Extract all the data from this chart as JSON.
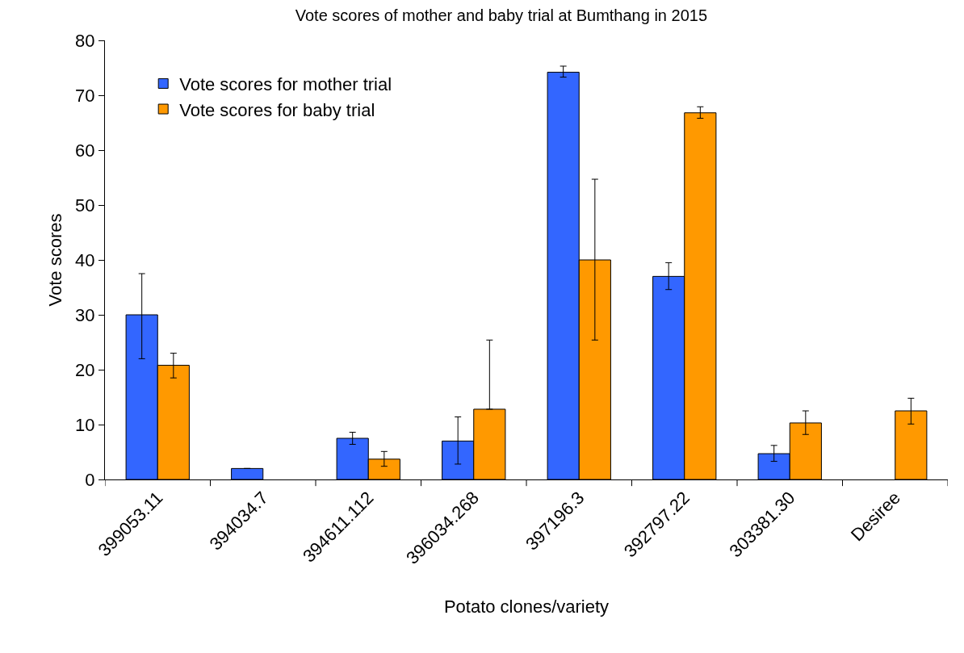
{
  "chart_data": {
    "type": "bar",
    "title": "Vote scores of mother and baby trial at Bumthang in 2015",
    "xlabel": "Potato clones/variety",
    "ylabel": "Vote scores",
    "categories": [
      "399053.11",
      "394034.7",
      "394611.112",
      "396034.268",
      "397196.3",
      "392797.22",
      "303381.30",
      "Desiree"
    ],
    "series": [
      {
        "name": "Vote scores for mother trial",
        "color": "#3366ff",
        "values": [
          30,
          2,
          7.5,
          7,
          74.2,
          37,
          4.7,
          null
        ],
        "errors": [
          [
            22,
            37.5
          ],
          null,
          [
            6.4,
            8.6
          ],
          [
            2.8,
            11.4
          ],
          [
            73.3,
            75.3
          ],
          [
            34.6,
            39.5
          ],
          [
            3.3,
            6.2
          ],
          null
        ]
      },
      {
        "name": "Vote scores for baby trial",
        "color": "#ff9900",
        "values": [
          20.8,
          null,
          3.7,
          12.8,
          40,
          66.8,
          10.3,
          12.5
        ],
        "errors": [
          [
            18.5,
            23
          ],
          null,
          [
            2.4,
            5.1
          ],
          [
            12.8,
            25.4
          ],
          [
            25.4,
            54.7
          ],
          [
            65.8,
            67.9
          ],
          [
            8.2,
            12.5
          ],
          [
            10.1,
            14.8
          ]
        ]
      }
    ],
    "ylim": [
      0,
      80
    ],
    "yticks": [
      0,
      10,
      20,
      30,
      40,
      50,
      60,
      70,
      80
    ],
    "grid": false,
    "legend": "top left"
  }
}
